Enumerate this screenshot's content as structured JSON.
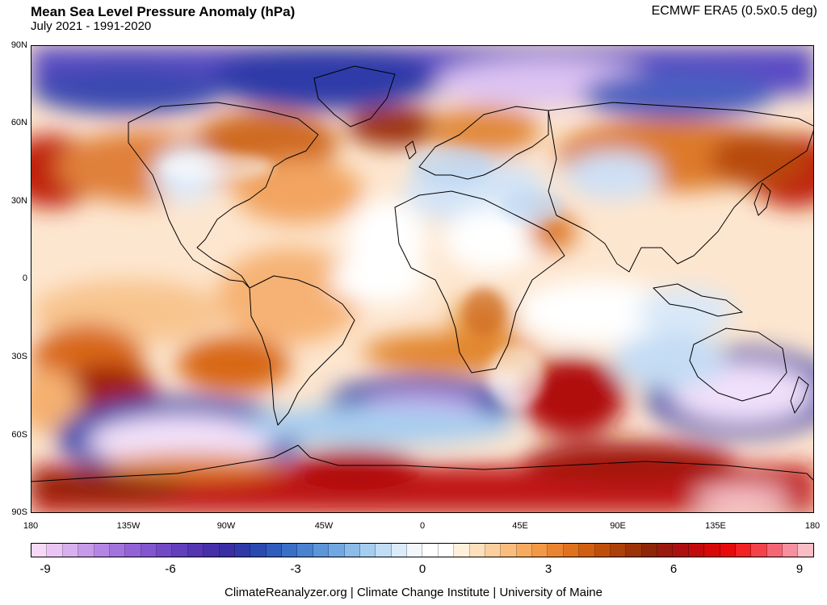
{
  "header": {
    "title": "Mean Sea Level Pressure Anomaly (hPa)",
    "subtitle": "July 2021 - 1991-2020",
    "source": "ECMWF ERA5 (0.5x0.5 deg)"
  },
  "axes": {
    "lat_labels": [
      "90N",
      "60N",
      "30N",
      "0",
      "30S",
      "60S",
      "90S"
    ],
    "lon_labels": [
      "180",
      "135W",
      "90W",
      "45W",
      "0",
      "45E",
      "90E",
      "135E",
      "180"
    ]
  },
  "colorbar": {
    "labels": [
      "-9",
      "-6",
      "-3",
      "0",
      "3",
      "6",
      "9"
    ],
    "colors": [
      "#f7d9f7",
      "#eac5f3",
      "#d9b0ee",
      "#c69ae8",
      "#b486e3",
      "#a373dd",
      "#9263d6",
      "#8256cf",
      "#724ac6",
      "#623fbc",
      "#5436b2",
      "#4630aa",
      "#3a2ea4",
      "#2f3aa8",
      "#2a4ab2",
      "#2f5cbd",
      "#3a6fc7",
      "#4a82d0",
      "#5d95d9",
      "#72a8e1",
      "#8bbbe9",
      "#a5cdf0",
      "#c0ddf5",
      "#dbebf9",
      "#f2f7fd",
      "#ffffff",
      "#ffffff",
      "#fff0dc",
      "#fee0bd",
      "#fdcf9c",
      "#fbbd7d",
      "#f8ab60",
      "#f29847",
      "#ea8431",
      "#df711f",
      "#d15f12",
      "#c04e0b",
      "#ad3f08",
      "#9c3207",
      "#8e2608",
      "#9a1a0d",
      "#ad1010",
      "#c20b0b",
      "#d60808",
      "#e60a0a",
      "#f02222",
      "#f3424a",
      "#f56674",
      "#f7909e",
      "#fabdc6"
    ]
  },
  "footer": "ClimateReanalyzer.org | Climate Change Institute | University of Maine"
}
